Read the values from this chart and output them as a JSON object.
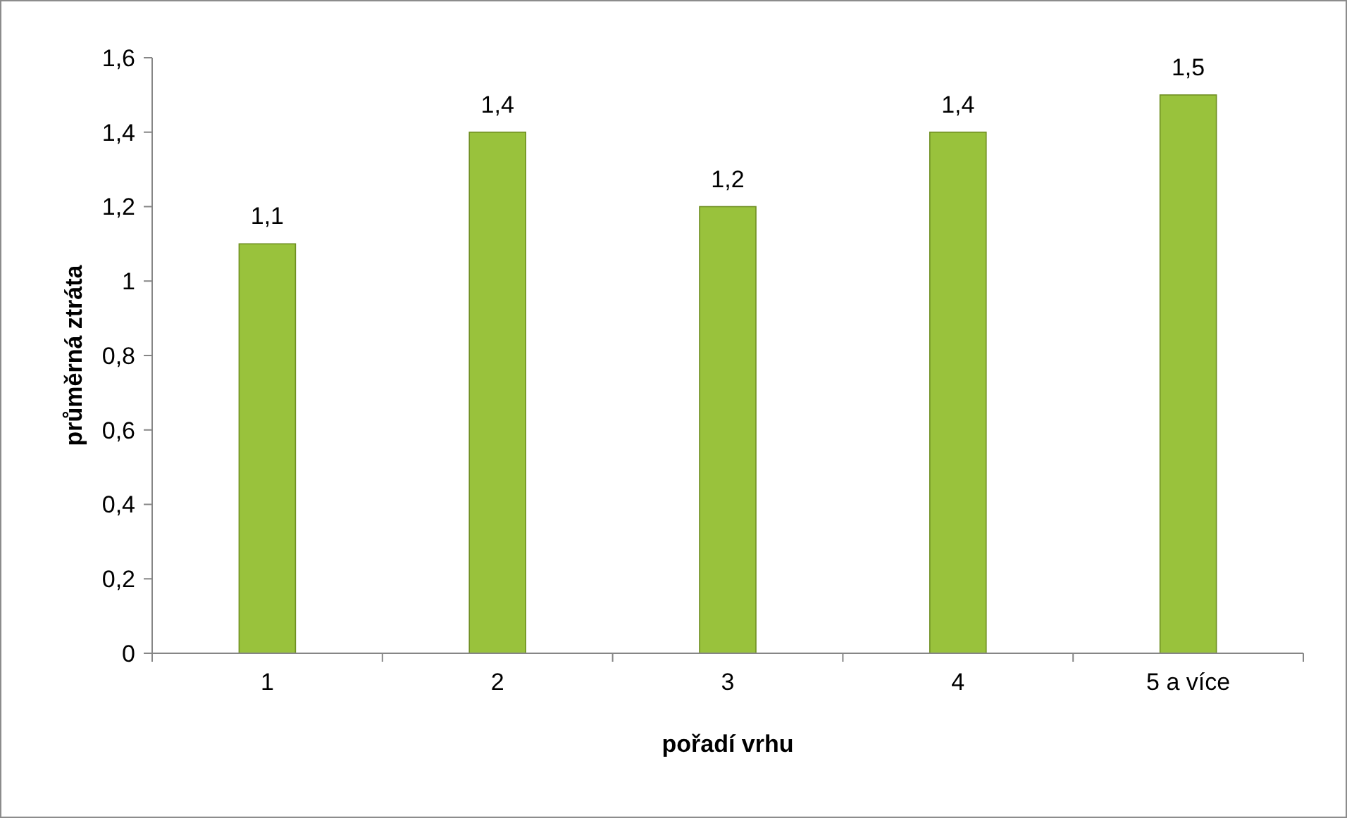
{
  "chart_data": {
    "type": "bar",
    "xlabel": "pořadí vrhu",
    "ylabel": "průměrná ztráta",
    "categories": [
      "1",
      "2",
      "3",
      "4",
      "5 a více"
    ],
    "values": [
      1.1,
      1.4,
      1.2,
      1.4,
      1.5
    ],
    "value_labels": [
      "1,1",
      "1,4",
      "1,2",
      "1,4",
      "1,5"
    ],
    "color": "#99c23c",
    "ylim": [
      0,
      1.6
    ],
    "yticks": [
      {
        "value": 0,
        "label": "0"
      },
      {
        "value": 0.2,
        "label": "0,2"
      },
      {
        "value": 0.4,
        "label": "0,4"
      },
      {
        "value": 0.6,
        "label": "0,6"
      },
      {
        "value": 0.8,
        "label": "0,8"
      },
      {
        "value": 1,
        "label": "1"
      },
      {
        "value": 1.2,
        "label": "1,2"
      },
      {
        "value": 1.4,
        "label": "1,4"
      },
      {
        "value": 1.6,
        "label": "1,6"
      }
    ],
    "grid": false
  }
}
